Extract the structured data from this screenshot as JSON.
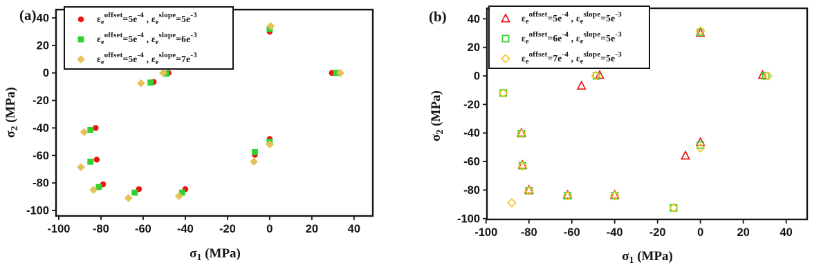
{
  "legend_tokens": {
    "epsilon": "ε",
    "sub_e": "e",
    "offset_word": "offset",
    "slope_word": "slope",
    "equals": "=",
    "comma": " , "
  },
  "chart_data": [
    {
      "type": "scatter",
      "panel_label": "(a)",
      "xlabel": "σ1 (MPa)",
      "ylabel": "σ2 (MPa)",
      "xlabel_parts": {
        "symbol": "σ",
        "sub": "1",
        "unit": " (MPa)"
      },
      "ylabel_parts": {
        "symbol": "σ",
        "sub": "2",
        "unit": " (MPa)"
      },
      "x_ticks": [
        -100,
        -80,
        -60,
        -40,
        -20,
        0,
        20,
        40
      ],
      "y_ticks": [
        40,
        20,
        0,
        -20,
        -40,
        -60,
        -80,
        -100
      ],
      "x_range": [
        -101.3,
        48.9
      ],
      "y_range": [
        -104,
        46
      ],
      "grid": false,
      "legend_position": "top-left",
      "series": [
        {
          "name": "εe offset=5e-4, εe slope=5e-3",
          "marker": "circle",
          "filled": true,
          "color": "#ee1414",
          "legend": {
            "offset_val": "5e",
            "offset_exp": "-4",
            "slope_val": "5e",
            "slope_exp": "-3"
          },
          "points": [
            [
              -48,
              0
            ],
            [
              -55,
              -6.5
            ],
            [
              -82.5,
              -40
            ],
            [
              -82,
              -63
            ],
            [
              -79,
              -81
            ],
            [
              -62,
              -84.5
            ],
            [
              -40,
              -84.5
            ],
            [
              0,
              30
            ],
            [
              29.5,
              0
            ],
            [
              0,
              -48
            ],
            [
              -7,
              -59.5
            ]
          ]
        },
        {
          "name": "εe offset=5e-4, εe slope=6e-3",
          "marker": "square",
          "filled": true,
          "color": "#2fd32f",
          "legend": {
            "offset_val": "5e",
            "offset_exp": "-4",
            "slope_val": "6e",
            "slope_exp": "-3"
          },
          "points": [
            [
              -49,
              -0.5
            ],
            [
              -56.5,
              -7
            ],
            [
              -85,
              -41.5
            ],
            [
              -85,
              -64.5
            ],
            [
              -81,
              -83
            ],
            [
              -64,
              -87
            ],
            [
              -41.5,
              -87
            ],
            [
              0,
              32
            ],
            [
              31.5,
              0
            ],
            [
              0,
              -50
            ],
            [
              -7,
              -57.5
            ]
          ]
        },
        {
          "name": "εe offset=5e-4, εe slope=7e-3",
          "marker": "diamond",
          "filled": true,
          "color": "#e4c159",
          "legend": {
            "offset_val": "5e",
            "offset_exp": "-4",
            "slope_val": "7e",
            "slope_exp": "-3"
          },
          "points": [
            [
              -50.5,
              0
            ],
            [
              -61,
              -7.5
            ],
            [
              -88,
              -43
            ],
            [
              -89.5,
              -68.5
            ],
            [
              -83.5,
              -85
            ],
            [
              -67,
              -91
            ],
            [
              -43,
              -89.5
            ],
            [
              0.5,
              34
            ],
            [
              33.5,
              0
            ],
            [
              0,
              -52
            ],
            [
              -7.5,
              -64.5
            ]
          ]
        }
      ]
    },
    {
      "type": "scatter",
      "panel_label": "(b)",
      "xlabel": "σ1 (MPa)",
      "ylabel": "σ2 (MPa)",
      "xlabel_parts": {
        "symbol": "σ",
        "sub": "1",
        "unit": " (MPa)"
      },
      "ylabel_parts": {
        "symbol": "σ",
        "sub": "2",
        "unit": " (MPa)"
      },
      "x_ticks": [
        -100,
        -80,
        -60,
        -40,
        -20,
        0,
        20,
        40
      ],
      "y_ticks": [
        40,
        20,
        0,
        -20,
        -40,
        -60,
        -80,
        -100
      ],
      "x_range": [
        -99.6,
        49.8
      ],
      "y_range": [
        -100.6,
        47.4
      ],
      "grid": false,
      "legend_position": "top-left",
      "series": [
        {
          "name": "εe offset=5e-4, εe slope=5e-3",
          "marker": "triangle",
          "filled": false,
          "color": "#ee1414",
          "legend": {
            "offset_val": "5e",
            "offset_exp": "-4",
            "slope_val": "5e",
            "slope_exp": "-3"
          },
          "points": [
            [
              -47,
              0.5
            ],
            [
              -55.5,
              -7
            ],
            [
              -83.5,
              -40
            ],
            [
              -83,
              -62.5
            ],
            [
              -80,
              -80
            ],
            [
              -62,
              -83.5
            ],
            [
              -40,
              -83.5
            ],
            [
              0,
              30
            ],
            [
              29,
              0.5
            ],
            [
              0,
              -46.5
            ],
            [
              -7,
              -56
            ]
          ]
        },
        {
          "name": "εe offset=6e-4, εe slope=5e-3",
          "marker": "square",
          "filled": false,
          "color": "#2fd32f",
          "legend": {
            "offset_val": "6e",
            "offset_exp": "-4",
            "slope_val": "5e",
            "slope_exp": "-3"
          },
          "points": [
            [
              -48.5,
              0
            ],
            [
              -92,
              -12
            ],
            [
              -83.5,
              -40.5
            ],
            [
              -83,
              -63
            ],
            [
              -80,
              -80.5
            ],
            [
              -62,
              -84
            ],
            [
              -40,
              -84
            ],
            [
              0,
              30.5
            ],
            [
              30.5,
              0
            ],
            [
              0,
              -48.5
            ],
            [
              -12.5,
              -92.5
            ]
          ]
        },
        {
          "name": "εe offset=7e-4, εe slope=5e-3",
          "marker": "diamond",
          "filled": false,
          "color": "#f2c330",
          "legend": {
            "offset_val": "7e",
            "offset_exp": "-4",
            "slope_val": "5e",
            "slope_exp": "-3"
          },
          "points": [
            [
              -48.8,
              0.3
            ],
            [
              -92,
              -12
            ],
            [
              -83.5,
              -40.5
            ],
            [
              -83,
              -63
            ],
            [
              -80,
              -80.5
            ],
            [
              -62,
              -84
            ],
            [
              -40,
              -84
            ],
            [
              0,
              31.5
            ],
            [
              31.5,
              0
            ],
            [
              0,
              -50.5
            ],
            [
              -12.5,
              -92.5
            ],
            [
              -88,
              -89
            ]
          ]
        }
      ]
    }
  ]
}
